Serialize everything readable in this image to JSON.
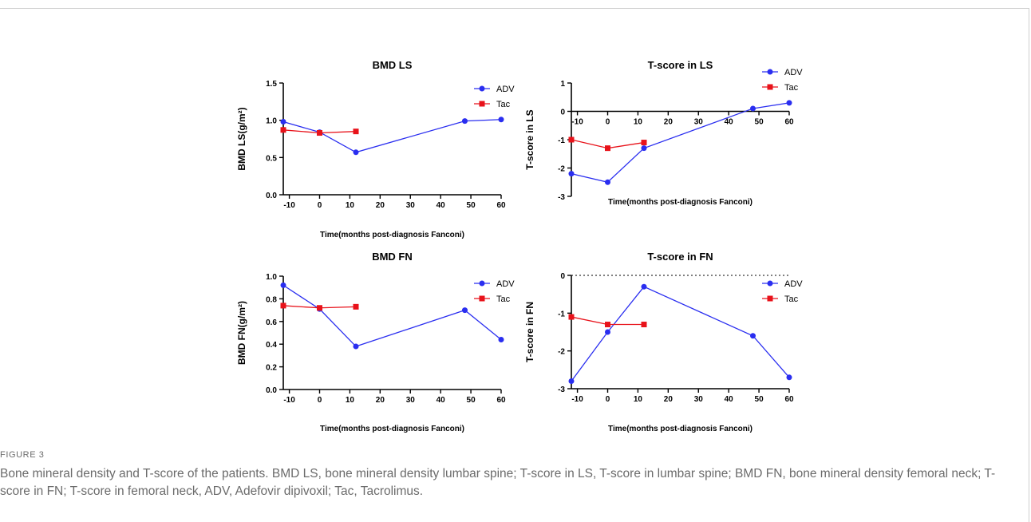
{
  "figure": {
    "label": "FIGURE 3",
    "caption": "Bone mineral density and T-score of the patients. BMD LS, bone mineral density lumbar spine; T-score in LS, T-score in lumbar spine; BMD FN, bone mineral density femoral neck; T-score in FN; T-score in femoral neck, ADV, Adefovir dipivoxil; Tac, Tacrolimus."
  },
  "colors": {
    "ADV": "#2a2ef0",
    "Tac": "#e8121a",
    "axis": "#000000"
  },
  "chart_data": [
    {
      "type": "line",
      "title": "BMD LS",
      "xlabel": "Time(months post-diagnosis Fanconi)",
      "ylabel": "BMD LS(g/m²)",
      "xlim": [
        -12,
        60
      ],
      "ylim": [
        0,
        1.5
      ],
      "xticks": [
        -10,
        0,
        10,
        20,
        30,
        40,
        50,
        60
      ],
      "yticks": [
        0.0,
        0.5,
        1.0,
        1.5
      ],
      "ytick_labels": [
        "0.0",
        "0.5",
        "1.0",
        "1.5"
      ],
      "legend": "top-right",
      "series": [
        {
          "name": "ADV",
          "marker": "circle",
          "x": [
            -12,
            0,
            12,
            48,
            60
          ],
          "y": [
            0.98,
            0.84,
            0.57,
            0.99,
            1.01
          ]
        },
        {
          "name": "Tac",
          "marker": "square",
          "x": [
            -12,
            0,
            12
          ],
          "y": [
            0.87,
            0.83,
            0.85
          ]
        }
      ]
    },
    {
      "type": "line",
      "title": "T-score in LS",
      "xlabel": "Time(months post-diagnosis Fanconi)",
      "ylabel": "T-score in LS",
      "xlim": [
        -12,
        60
      ],
      "ylim": [
        -3,
        1
      ],
      "xticks": [
        -10,
        0,
        10,
        20,
        30,
        40,
        50,
        60
      ],
      "yticks": [
        -3,
        -2,
        -1,
        0,
        1
      ],
      "ytick_labels": [
        "-3",
        "-2",
        "-1",
        "0",
        "1"
      ],
      "x_axis_at_zero": true,
      "legend": "top-right",
      "series": [
        {
          "name": "ADV",
          "marker": "circle",
          "x": [
            -12,
            0,
            12,
            48,
            60
          ],
          "y": [
            -2.2,
            -2.5,
            -1.3,
            0.1,
            0.3
          ]
        },
        {
          "name": "Tac",
          "marker": "square",
          "x": [
            -12,
            0,
            12
          ],
          "y": [
            -1.0,
            -1.3,
            -1.1
          ]
        }
      ]
    },
    {
      "type": "line",
      "title": "BMD FN",
      "xlabel": "Time(months post-diagnosis Fanconi)",
      "ylabel": "BMD FN(g/m²)",
      "xlim": [
        -12,
        60
      ],
      "ylim": [
        0,
        1.0
      ],
      "xticks": [
        -10,
        0,
        10,
        20,
        30,
        40,
        50,
        60
      ],
      "yticks": [
        0.0,
        0.2,
        0.4,
        0.6,
        0.8,
        1.0
      ],
      "ytick_labels": [
        "0.0",
        "0.2",
        "0.4",
        "0.6",
        "0.8",
        "1.0"
      ],
      "legend": "top-right",
      "series": [
        {
          "name": "ADV",
          "marker": "circle",
          "x": [
            -12,
            0,
            12,
            48,
            60
          ],
          "y": [
            0.92,
            0.71,
            0.38,
            0.7,
            0.44
          ]
        },
        {
          "name": "Tac",
          "marker": "square",
          "x": [
            -12,
            0,
            12
          ],
          "y": [
            0.74,
            0.72,
            0.73
          ]
        }
      ]
    },
    {
      "type": "line",
      "title": "T-score in FN",
      "xlabel": "Time(months post-diagnosis Fanconi)",
      "ylabel": "T-score in FN",
      "xlim": [
        -12,
        60
      ],
      "ylim": [
        -3,
        0
      ],
      "xticks": [
        -10,
        0,
        10,
        20,
        30,
        40,
        50,
        60
      ],
      "yticks": [
        -3,
        -2,
        -1,
        0
      ],
      "ytick_labels": [
        "-3",
        "-2",
        "-1",
        "0"
      ],
      "zero_line_dotted": true,
      "legend": "top-right",
      "series": [
        {
          "name": "ADV",
          "marker": "circle",
          "x": [
            -12,
            0,
            12,
            48,
            60
          ],
          "y": [
            -2.8,
            -1.5,
            -0.3,
            -1.6,
            -2.7
          ]
        },
        {
          "name": "Tac",
          "marker": "square",
          "x": [
            -12,
            0,
            12
          ],
          "y": [
            -1.1,
            -1.3,
            -1.3
          ]
        }
      ]
    }
  ]
}
